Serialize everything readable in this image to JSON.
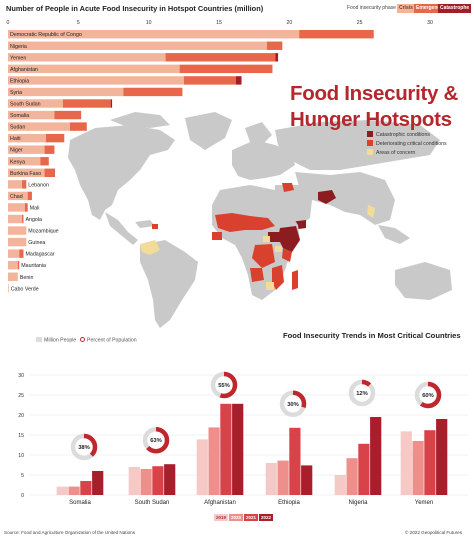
{
  "header": {
    "top_chart_title": "Number of People in Acute Food Insecurity in Hotspot Countries (million)",
    "phase_label": "Food insecurity phase",
    "phases": [
      "Crisis",
      "Emergency",
      "Catastrophe"
    ],
    "big_title_line1": "Food Insecurity &",
    "big_title_line2": "Hunger Hotspots"
  },
  "map_legend": {
    "items": [
      "Catastrophic conditions",
      "Deteriorating critical conditions",
      "Areas of concern"
    ]
  },
  "colors": {
    "crisis": "#f3b49c",
    "emergency": "#e8664a",
    "catastrophe": "#a31d24",
    "map_land": "#c9c9c9",
    "map_catastrophic": "#8c1c20",
    "map_deteriorating": "#d9412e",
    "map_concern": "#f3dc9a",
    "bar_2019": "#f5c9c5",
    "bar_2020": "#ef8f8b",
    "bar_2021": "#d8434a",
    "bar_2022": "#a81e2a",
    "title_red": "#b3272d"
  },
  "bottom": {
    "title": "Food Insecurity Trends in Most Critical Countries",
    "legend_people": "Million People",
    "legend_percent": "Percent of Population",
    "years": [
      "2019",
      "2020",
      "2021",
      "2022"
    ]
  },
  "footer": {
    "source": "Source: Food and Agriculture Organization of the United Nations",
    "copyright": "© 2022 Geopolitical Futures"
  },
  "chart_data": [
    {
      "type": "bar",
      "orientation": "horizontal-stacked",
      "title": "Number of People in Acute Food Insecurity in Hotspot Countries (million)",
      "x_ticks": [
        0,
        5,
        10,
        15,
        20,
        25,
        30
      ],
      "xlim": [
        0,
        30
      ],
      "series_names": [
        "Crisis",
        "Emergency",
        "Catastrophe"
      ],
      "categories": [
        "Democratic Republic of Congo",
        "Nigeria",
        "Yemen",
        "Afghanistan",
        "Ethiopia",
        "Syria",
        "South Sudan",
        "Somalia",
        "Sudan",
        "Haiti",
        "Niger",
        "Kenya",
        "Burkina Faso",
        "Lebanon",
        "Chad",
        "Mali",
        "Angola",
        "Mozambique",
        "Guinea",
        "Madagascar",
        "Mauritania",
        "Benin",
        "Cabo Verde"
      ],
      "series": [
        {
          "name": "Crisis",
          "values": [
            20.7,
            18.4,
            11.2,
            12.2,
            12.5,
            8.2,
            3.9,
            3.3,
            4.4,
            2.7,
            2.6,
            2.3,
            2.6,
            1.0,
            1.4,
            1.2,
            1.0,
            1.3,
            1.3,
            0.8,
            0.7,
            0.7,
            0.05
          ]
        },
        {
          "name": "Emergency",
          "values": [
            5.3,
            1.1,
            7.8,
            6.6,
            3.7,
            4.2,
            3.4,
            1.9,
            1.2,
            1.3,
            0.7,
            0.6,
            0.7,
            0.3,
            0.3,
            0.2,
            0.1,
            0.0,
            0.0,
            0.3,
            0.1,
            0.0,
            0.0
          ]
        },
        {
          "name": "Catastrophe",
          "values": [
            0.0,
            0.0,
            0.2,
            0.0,
            0.4,
            0.0,
            0.1,
            0.0,
            0.0,
            0.0,
            0.0,
            0.0,
            0.03,
            0.0,
            0.0,
            0.0,
            0.0,
            0.0,
            0.0,
            0.0,
            0.0,
            0.0,
            0.0
          ]
        }
      ]
    },
    {
      "type": "bar",
      "title": "Food Insecurity Trends in Most Critical Countries",
      "ylim": [
        0,
        30
      ],
      "y_ticks": [
        0,
        5,
        10,
        15,
        20,
        25,
        30
      ],
      "categories": [
        "Somalia",
        "South Sudan",
        "Afghanistan",
        "Ethiopia",
        "Nigeria",
        "Yemen"
      ],
      "series": [
        {
          "name": "2019",
          "values": [
            2.1,
            7.0,
            13.9,
            8.0,
            5.0,
            15.9
          ]
        },
        {
          "name": "2020",
          "values": [
            2.1,
            6.5,
            16.9,
            8.6,
            9.2,
            13.5
          ]
        },
        {
          "name": "2021",
          "values": [
            3.5,
            7.2,
            22.8,
            16.8,
            12.8,
            16.2
          ]
        },
        {
          "name": "2022",
          "values": [
            6.0,
            7.7,
            22.8,
            7.4,
            19.5,
            19.0
          ]
        }
      ],
      "percent_of_population": [
        {
          "country": "Somalia",
          "label": "38%",
          "value": 38
        },
        {
          "country": "South Sudan",
          "label": "63%",
          "value": 63
        },
        {
          "country": "Afghanistan",
          "label": "55%",
          "value": 55
        },
        {
          "country": "Ethiopia",
          "label": "30%",
          "value": 30
        },
        {
          "country": "Nigeria",
          "label": "12%",
          "value": 12
        },
        {
          "country": "Yemen",
          "label": "60%",
          "value": 60
        }
      ]
    }
  ]
}
